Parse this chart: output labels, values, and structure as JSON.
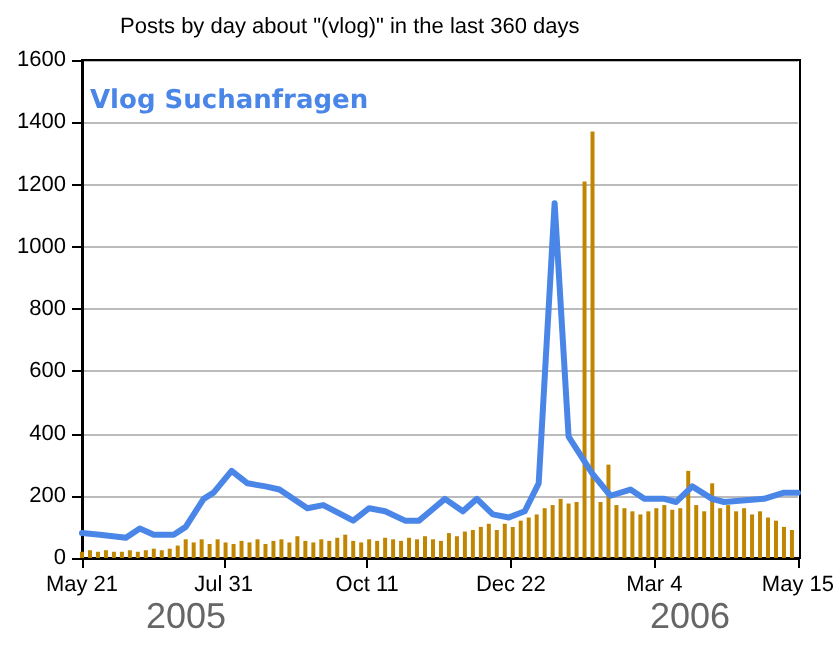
{
  "chart_data": {
    "type": "bar",
    "title": "Posts by day about \"(vlog)\" in the last 360 days",
    "x": [
      "2005-05-21",
      "2005-05-25",
      "2005-05-29",
      "2005-06-02",
      "2005-06-06",
      "2005-06-10",
      "2005-06-14",
      "2005-06-18",
      "2005-06-22",
      "2005-06-26",
      "2005-06-30",
      "2005-07-04",
      "2005-07-08",
      "2005-07-12",
      "2005-07-16",
      "2005-07-20",
      "2005-07-24",
      "2005-07-28",
      "2005-08-01",
      "2005-08-05",
      "2005-08-09",
      "2005-08-13",
      "2005-08-17",
      "2005-08-21",
      "2005-08-25",
      "2005-08-29",
      "2005-09-02",
      "2005-09-06",
      "2005-09-10",
      "2005-09-14",
      "2005-09-18",
      "2005-09-22",
      "2005-09-26",
      "2005-09-30",
      "2005-10-04",
      "2005-10-08",
      "2005-10-12",
      "2005-10-16",
      "2005-10-20",
      "2005-10-24",
      "2005-10-28",
      "2005-11-01",
      "2005-11-05",
      "2005-11-09",
      "2005-11-13",
      "2005-11-17",
      "2005-11-21",
      "2005-11-25",
      "2005-11-29",
      "2005-12-03",
      "2005-12-07",
      "2005-12-11",
      "2005-12-15",
      "2005-12-19",
      "2005-12-23",
      "2005-12-27",
      "2005-12-31",
      "2006-01-04",
      "2006-01-08",
      "2006-01-12",
      "2006-01-16",
      "2006-01-20",
      "2006-01-24",
      "2006-01-28",
      "2006-02-01",
      "2006-02-05",
      "2006-02-09",
      "2006-02-13",
      "2006-02-17",
      "2006-02-21",
      "2006-02-25",
      "2006-03-01",
      "2006-03-05",
      "2006-03-09",
      "2006-03-13",
      "2006-03-17",
      "2006-03-21",
      "2006-03-25",
      "2006-03-29",
      "2006-04-02",
      "2006-04-06",
      "2006-04-10",
      "2006-04-14",
      "2006-04-18",
      "2006-04-22",
      "2006-04-26",
      "2006-04-30",
      "2006-05-04",
      "2006-05-08",
      "2006-05-12"
    ],
    "series": [
      {
        "color": "#c08600",
        "values": [
          20,
          25,
          20,
          25,
          20,
          20,
          25,
          20,
          25,
          30,
          25,
          30,
          40,
          60,
          50,
          60,
          45,
          60,
          50,
          45,
          55,
          50,
          60,
          45,
          55,
          60,
          50,
          70,
          55,
          50,
          60,
          55,
          65,
          75,
          55,
          50,
          60,
          55,
          65,
          60,
          55,
          65,
          60,
          70,
          60,
          55,
          80,
          70,
          85,
          90,
          100,
          110,
          90,
          110,
          100,
          120,
          130,
          140,
          160,
          170,
          190,
          175,
          180,
          1210,
          1370,
          180,
          300,
          170,
          160,
          150,
          140,
          150,
          160,
          170,
          155,
          160,
          280,
          170,
          150,
          240,
          160,
          170,
          150,
          160,
          140,
          150,
          130,
          120,
          100,
          90
        ]
      },
      {
        "type": "line",
        "color": "#4a86e8",
        "x": [
          "2005-05-21",
          "2005-05-30",
          "2005-06-12",
          "2005-06-19",
          "2005-06-26",
          "2005-07-06",
          "2005-07-12",
          "2005-07-21",
          "2005-07-26",
          "2005-08-04",
          "2005-08-12",
          "2005-08-21",
          "2005-08-28",
          "2005-09-11",
          "2005-09-19",
          "2005-10-04",
          "2005-10-12",
          "2005-10-20",
          "2005-10-30",
          "2005-11-06",
          "2005-11-19",
          "2005-11-28",
          "2005-12-05",
          "2005-12-13",
          "2005-12-21",
          "2005-12-29",
          "2006-01-05",
          "2006-01-13",
          "2006-01-20",
          "2006-02-01",
          "2006-02-10",
          "2006-02-20",
          "2006-02-27",
          "2006-03-09",
          "2006-03-15",
          "2006-03-23",
          "2006-04-02",
          "2006-04-08",
          "2006-04-28",
          "2006-05-08",
          "2006-05-15"
        ],
        "values": [
          80,
          75,
          65,
          95,
          75,
          75,
          100,
          190,
          210,
          280,
          240,
          230,
          220,
          160,
          170,
          120,
          160,
          150,
          120,
          120,
          190,
          150,
          190,
          140,
          130,
          150,
          240,
          1140,
          390,
          270,
          200,
          220,
          190,
          190,
          180,
          230,
          190,
          180,
          190,
          210,
          210
        ]
      }
    ],
    "xlim": [
      "2005-05-21",
      "2006-05-15"
    ],
    "xticks": [
      {
        "value": "2005-05-21",
        "label": "May 21"
      },
      {
        "value": "2005-07-31",
        "label": "Jul 31"
      },
      {
        "value": "2005-10-11",
        "label": "Oct 11"
      },
      {
        "value": "2005-12-22",
        "label": "Dec 22"
      },
      {
        "value": "2006-03-04",
        "label": "Mar 4"
      },
      {
        "value": "2006-05-15",
        "label": "May 15"
      }
    ],
    "ylim": [
      0,
      1600
    ],
    "yticks": [
      0,
      200,
      400,
      600,
      800,
      1000,
      1200,
      1400,
      1600
    ],
    "grid": "y",
    "marker": "none",
    "line_style": "solid",
    "annotations": [
      "Vlog Suchanfragen",
      "2005",
      "2006"
    ]
  }
}
